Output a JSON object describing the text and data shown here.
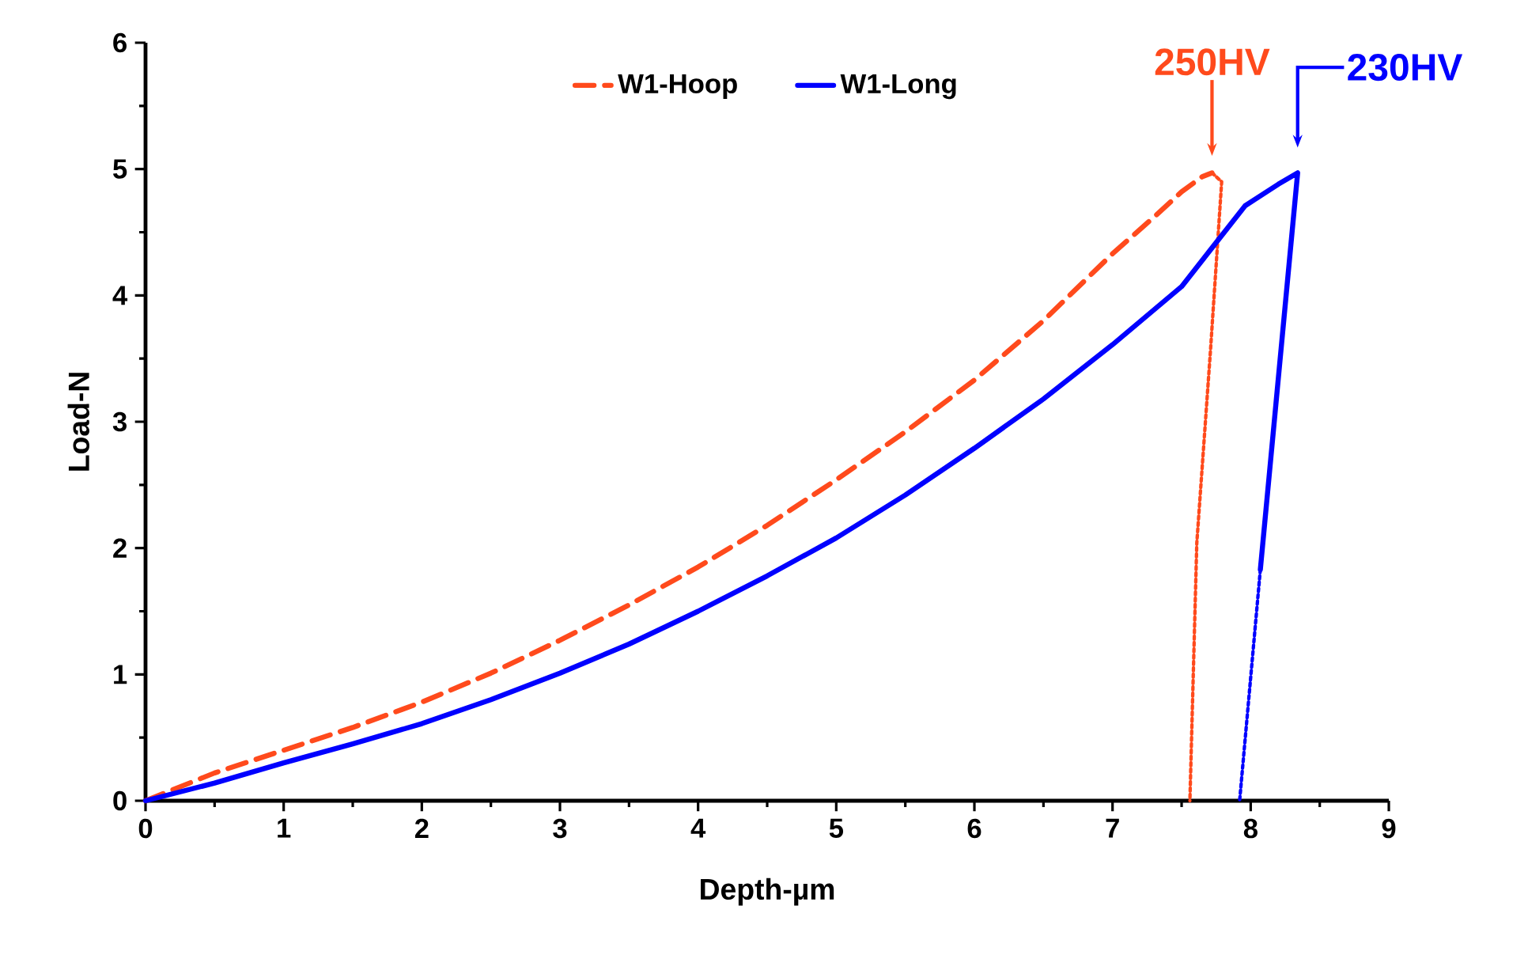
{
  "chart_data": {
    "type": "line",
    "xlabel": "Depth-µm",
    "ylabel": "Load-N",
    "xlim": [
      0,
      9
    ],
    "ylim": [
      0,
      6
    ],
    "xticks": [
      0,
      1,
      2,
      3,
      4,
      5,
      6,
      7,
      8,
      9
    ],
    "yticks": [
      0,
      1,
      2,
      3,
      4,
      5,
      6
    ],
    "grid": false,
    "legend": "top",
    "marker": "none",
    "series": [
      {
        "name": "W1-Hoop",
        "color": "#ff4a1c",
        "line_style": "dashed",
        "x": [
          0,
          0.5,
          1,
          1.5,
          2,
          2.5,
          3,
          3.5,
          4,
          4.5,
          5,
          5.5,
          6,
          6.5,
          7,
          7.3,
          7.5,
          7.65,
          7.72
        ],
        "values": [
          0,
          0.22,
          0.4,
          0.58,
          0.78,
          1.01,
          1.27,
          1.55,
          1.85,
          2.18,
          2.54,
          2.92,
          3.33,
          3.8,
          4.33,
          4.62,
          4.82,
          4.94,
          4.97
        ]
      },
      {
        "color": "#ff4a1c",
        "line_style": "dotted",
        "x": [
          7.72,
          7.79,
          7.71,
          7.61,
          7.56
        ],
        "values": [
          4.97,
          4.9,
          3.58,
          2.04,
          0
        ]
      },
      {
        "name": "W1-Long",
        "color": "#0000ff",
        "line_style": "solid",
        "x": [
          0,
          0.5,
          1,
          1.5,
          2,
          2.5,
          3,
          3.5,
          4,
          4.5,
          5,
          5.5,
          6,
          6.5,
          7,
          7.5,
          7.96,
          8.2,
          8.34,
          8.07
        ],
        "values": [
          0,
          0.14,
          0.3,
          0.45,
          0.61,
          0.8,
          1.01,
          1.24,
          1.5,
          1.78,
          2.08,
          2.42,
          2.79,
          3.18,
          3.61,
          4.07,
          4.71,
          4.88,
          4.97,
          1.83
        ]
      },
      {
        "color": "#0000ff",
        "line_style": "dotted",
        "x": [
          8.07,
          7.92
        ],
        "values": [
          1.83,
          0
        ]
      }
    ],
    "annotations": [
      {
        "text": "250HV",
        "x": 7.72,
        "y": 4.97
      },
      {
        "text": "230HV",
        "x": 8.34,
        "y": 4.97
      }
    ]
  }
}
